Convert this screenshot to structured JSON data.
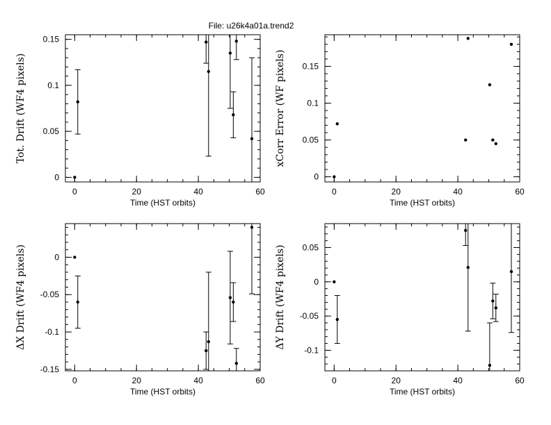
{
  "file_title": "File: u26k4a01a.trend2",
  "chart_data": [
    {
      "id": "tot-drift",
      "type": "scatter",
      "xlabel": "Time (HST orbits)",
      "ylabel": "Tot. Drift (WF4 pixels)",
      "xlim": [
        -3,
        60
      ],
      "ylim": [
        -0.005,
        0.155
      ],
      "xticks": [
        0,
        20,
        40,
        60
      ],
      "yticks": [
        0,
        0.05,
        0.1,
        0.15
      ],
      "ytick_labels": [
        "0",
        "0.05",
        "0.1",
        "0.15"
      ],
      "minor_x": 5,
      "minor_y": 0.01,
      "points": [
        {
          "x": 0,
          "y": 0.0,
          "err": 0
        },
        {
          "x": 1,
          "y": 0.082,
          "err": 0.035
        },
        {
          "x": 42.5,
          "y": 0.147,
          "err": 0.023
        },
        {
          "x": 43.3,
          "y": 0.115,
          "err": 0.092
        },
        {
          "x": 50.3,
          "y": 0.135,
          "err": 0.06
        },
        {
          "x": 51.3,
          "y": 0.068,
          "err": 0.025
        },
        {
          "x": 52.3,
          "y": 0.148,
          "err": 0.02
        },
        {
          "x": 57.3,
          "y": 0.042,
          "err": 0.088
        }
      ]
    },
    {
      "id": "xcorr-error",
      "type": "scatter",
      "xlabel": "Time (HST orbits)",
      "ylabel": "xCorr Error (WF pixels)",
      "xlim": [
        -3,
        60
      ],
      "ylim": [
        -0.007,
        0.193
      ],
      "xticks": [
        0,
        20,
        40,
        60
      ],
      "yticks": [
        0,
        0.05,
        0.1,
        0.15
      ],
      "ytick_labels": [
        "0",
        "0.05",
        "0.1",
        "0.15"
      ],
      "minor_x": 5,
      "minor_y": 0.01,
      "points": [
        {
          "x": 0,
          "y": 0.0,
          "err": 0
        },
        {
          "x": 1,
          "y": 0.072,
          "err": 0
        },
        {
          "x": 42.5,
          "y": 0.05,
          "err": 0
        },
        {
          "x": 43.3,
          "y": 0.188,
          "err": 0
        },
        {
          "x": 50.3,
          "y": 0.125,
          "err": 0
        },
        {
          "x": 51.3,
          "y": 0.05,
          "err": 0
        },
        {
          "x": 52.3,
          "y": 0.045,
          "err": 0
        },
        {
          "x": 57.3,
          "y": 0.18,
          "err": 0
        }
      ]
    },
    {
      "id": "dx-drift",
      "type": "scatter",
      "xlabel": "Time (HST orbits)",
      "ylabel": "ΔX Drift (WF4 pixels)",
      "xlim": [
        -3,
        60
      ],
      "ylim": [
        -0.152,
        0.045
      ],
      "xticks": [
        0,
        20,
        40,
        60
      ],
      "yticks": [
        -0.15,
        -0.1,
        -0.05,
        0
      ],
      "ytick_labels": [
        "-0.15",
        "-0.1",
        "-0.05",
        "0"
      ],
      "minor_x": 5,
      "minor_y": 0.01,
      "points": [
        {
          "x": 0,
          "y": 0.0,
          "err": 0
        },
        {
          "x": 1,
          "y": -0.06,
          "err": 0.035
        },
        {
          "x": 42.5,
          "y": -0.125,
          "err": 0.025
        },
        {
          "x": 43.3,
          "y": -0.113,
          "err": 0.093
        },
        {
          "x": 50.3,
          "y": -0.054,
          "err": 0.062
        },
        {
          "x": 51.3,
          "y": -0.06,
          "err": 0.026
        },
        {
          "x": 52.3,
          "y": -0.142,
          "err": 0.02
        },
        {
          "x": 57.3,
          "y": 0.04,
          "err": 0.089
        }
      ]
    },
    {
      "id": "dy-drift",
      "type": "scatter",
      "xlabel": "Time (HST orbits)",
      "ylabel": "ΔY Drift (WF4 pixels)",
      "xlim": [
        -3,
        60
      ],
      "ylim": [
        -0.13,
        0.085
      ],
      "xticks": [
        0,
        20,
        40,
        60
      ],
      "yticks": [
        -0.1,
        -0.05,
        0,
        0.05
      ],
      "ytick_labels": [
        "-0.1",
        "-0.05",
        "0",
        "0.05"
      ],
      "minor_x": 5,
      "minor_y": 0.01,
      "points": [
        {
          "x": 0,
          "y": 0.0,
          "err": 0
        },
        {
          "x": 1,
          "y": -0.055,
          "err": 0.035
        },
        {
          "x": 42.5,
          "y": 0.075,
          "err": 0.022
        },
        {
          "x": 43.3,
          "y": 0.021,
          "err": 0.093
        },
        {
          "x": 50.3,
          "y": -0.122,
          "err": 0.062
        },
        {
          "x": 51.3,
          "y": -0.028,
          "err": 0.026
        },
        {
          "x": 52.3,
          "y": -0.038,
          "err": 0.02
        },
        {
          "x": 57.3,
          "y": 0.015,
          "err": 0.089
        }
      ]
    }
  ]
}
